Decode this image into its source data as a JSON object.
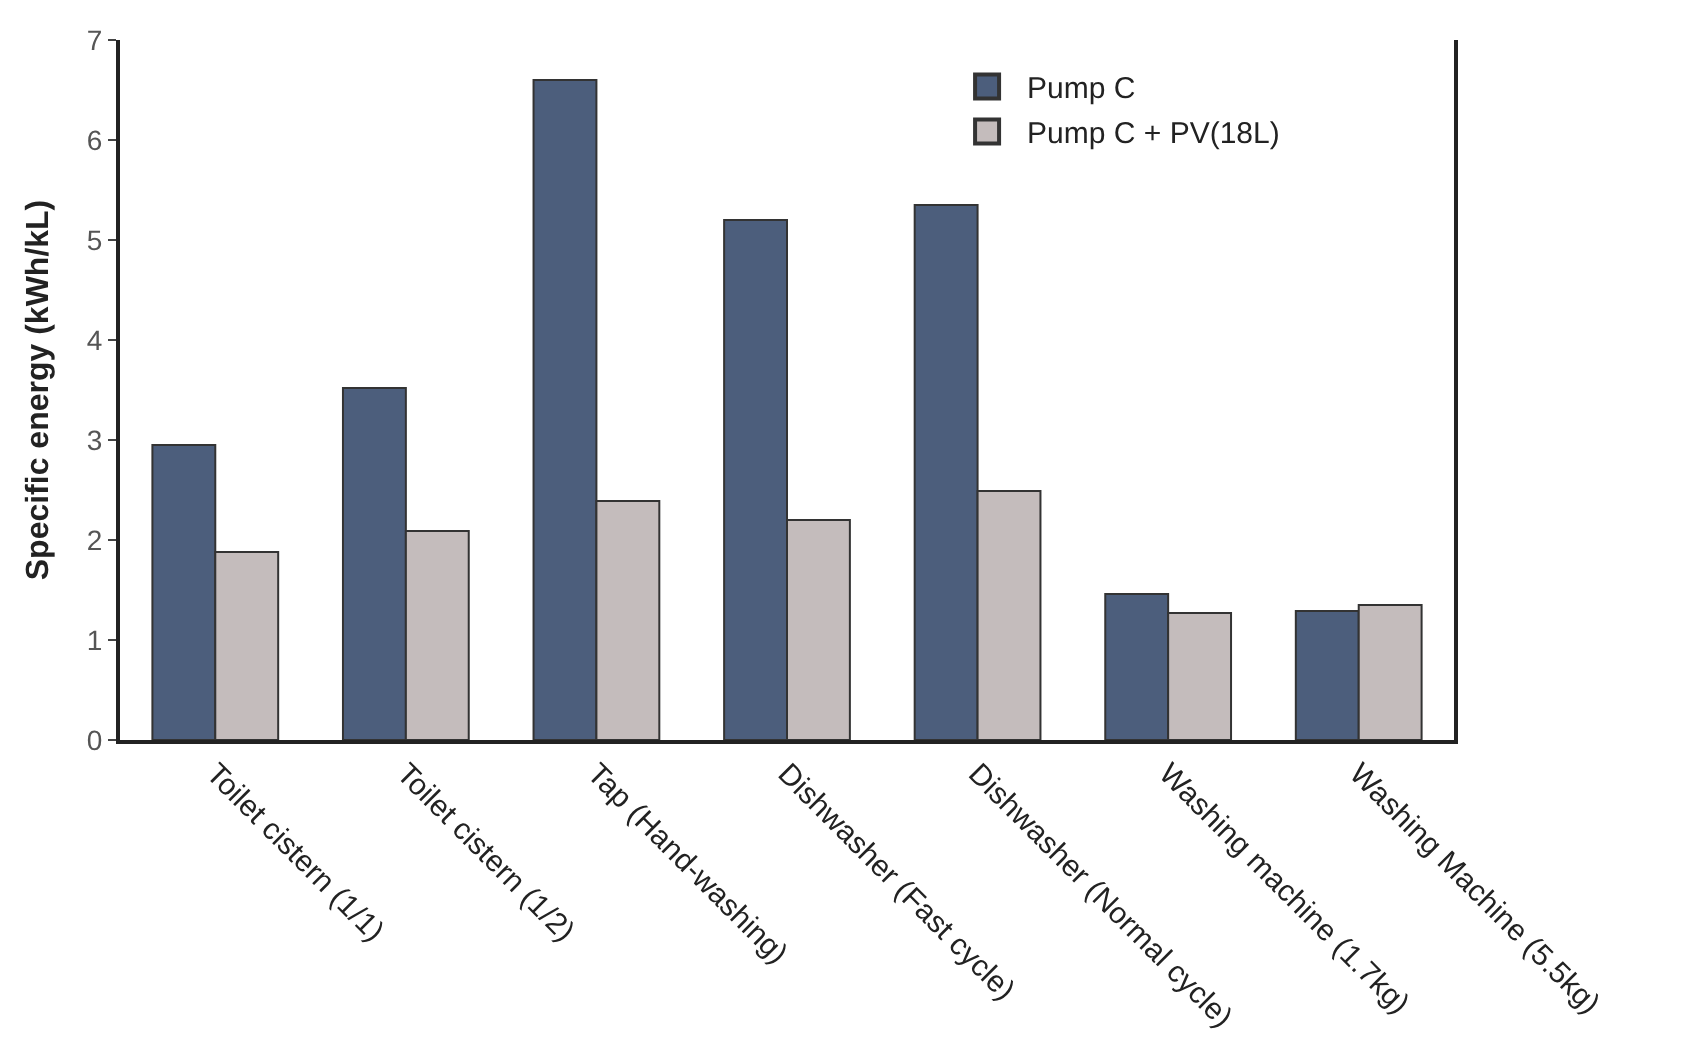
{
  "chart_data": {
    "type": "bar",
    "ylabel": "Specific energy (kWh/kL)",
    "categories": [
      "Toilet cistern (1/1)",
      "Toilet cistern (1/2)",
      "Tap (Hand-washing)",
      "Dishwasher (Fast cycle)",
      "Dishwasher (Normal cycle)",
      "Washing machine (1.7kg)",
      "Washing Machine (5.5kg)"
    ],
    "series": [
      {
        "name": "Pump C",
        "color": "#4c5e7c",
        "values": [
          2.95,
          3.52,
          6.6,
          5.2,
          5.35,
          1.46,
          1.29
        ]
      },
      {
        "name": "Pump C + PV(18L)",
        "color": "#c4bcbc",
        "values": [
          1.88,
          2.09,
          2.39,
          2.2,
          2.49,
          1.27,
          1.35
        ]
      }
    ],
    "ylim": [
      0,
      7
    ],
    "yticks": [
      0,
      1,
      2,
      3,
      4,
      5,
      6,
      7
    ],
    "legend": "top right"
  }
}
